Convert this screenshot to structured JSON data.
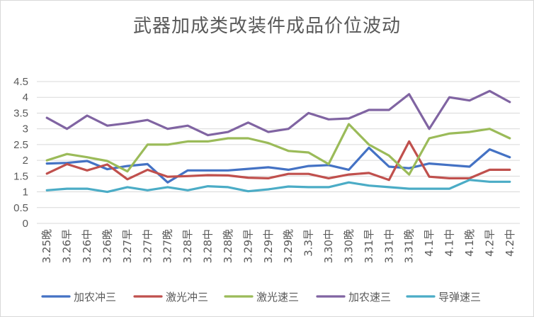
{
  "chart_data": {
    "type": "line",
    "title": "武器加成类改装件成品价位波动",
    "xlabel": "",
    "ylabel": "",
    "ylim": [
      0,
      4.5
    ],
    "yticks": [
      "0",
      "0.5",
      "1",
      "1.5",
      "2",
      "2.5",
      "3",
      "3.5",
      "4",
      "4.5"
    ],
    "grid": true,
    "legend_position": "bottom",
    "categories": [
      "3.25晚",
      "3.26早",
      "3.26中",
      "3.26晚",
      "3.27早",
      "3.27中",
      "3.27晚",
      "3.28早",
      "3.28中",
      "3.28晚",
      "3.29早",
      "3.29中",
      "3.29晚",
      "3.3早",
      "3.30中",
      "3.30晚",
      "3.31早",
      "3.31中",
      "3.31晚",
      "4.1早",
      "4.1中",
      "4.1晚",
      "4.2早",
      "4.2中"
    ],
    "series": [
      {
        "name": "加农冲三",
        "color": "#4472c4",
        "values": [
          1.9,
          1.92,
          1.98,
          1.72,
          1.82,
          1.88,
          1.3,
          1.68,
          1.68,
          1.68,
          1.73,
          1.78,
          1.7,
          1.82,
          1.85,
          1.7,
          2.4,
          1.8,
          1.75,
          1.9,
          1.85,
          1.8,
          2.35,
          2.1
        ]
      },
      {
        "name": "激光冲三",
        "color": "#c0504d",
        "values": [
          1.58,
          1.88,
          1.68,
          1.87,
          1.4,
          1.7,
          1.48,
          1.5,
          1.53,
          1.52,
          1.45,
          1.43,
          1.57,
          1.57,
          1.43,
          1.55,
          1.6,
          1.38,
          2.6,
          1.48,
          1.43,
          1.43,
          1.7,
          1.7
        ]
      },
      {
        "name": "激光速三",
        "color": "#9bbb59",
        "values": [
          2.0,
          2.2,
          2.1,
          1.98,
          1.65,
          2.5,
          2.5,
          2.6,
          2.6,
          2.7,
          2.7,
          2.55,
          2.3,
          2.25,
          1.88,
          3.15,
          2.5,
          2.15,
          1.55,
          2.7,
          2.85,
          2.9,
          3.0,
          2.7
        ]
      },
      {
        "name": "加农速三",
        "color": "#8064a2",
        "values": [
          3.35,
          3.0,
          3.42,
          3.1,
          3.18,
          3.28,
          3.0,
          3.1,
          2.8,
          2.9,
          3.2,
          2.9,
          3.0,
          3.5,
          3.3,
          3.33,
          3.6,
          3.6,
          4.1,
          3.0,
          4.0,
          3.9,
          4.2,
          3.85
        ]
      },
      {
        "name": "导弹速三",
        "color": "#4bacc6",
        "values": [
          1.05,
          1.1,
          1.1,
          1.0,
          1.15,
          1.05,
          1.15,
          1.05,
          1.18,
          1.15,
          1.02,
          1.08,
          1.17,
          1.15,
          1.15,
          1.3,
          1.2,
          1.15,
          1.1,
          1.1,
          1.1,
          1.38,
          1.32,
          1.32
        ]
      }
    ]
  }
}
